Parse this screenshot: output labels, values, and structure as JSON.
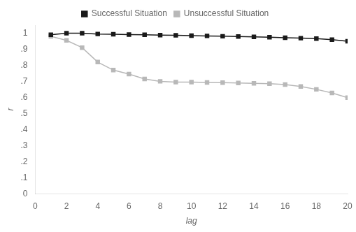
{
  "chart_data": {
    "type": "line",
    "x_label": "lag",
    "y_label": "r",
    "x": [
      1,
      2,
      3,
      4,
      5,
      6,
      7,
      8,
      9,
      10,
      11,
      12,
      13,
      14,
      15,
      16,
      17,
      18,
      19,
      20
    ],
    "series": [
      {
        "name": "Successful Situation",
        "color": "#1a1a1a",
        "marker": "square",
        "values": [
          0.99,
          1.0,
          1.0,
          0.995,
          0.993,
          0.991,
          0.99,
          0.988,
          0.987,
          0.985,
          0.983,
          0.981,
          0.979,
          0.977,
          0.975,
          0.972,
          0.969,
          0.966,
          0.96,
          0.95
        ]
      },
      {
        "name": "Unsuccessful Situation",
        "color": "#b8b8b8",
        "marker": "square",
        "values": [
          0.98,
          0.955,
          0.91,
          0.82,
          0.77,
          0.745,
          0.715,
          0.7,
          0.695,
          0.695,
          0.693,
          0.692,
          0.69,
          0.688,
          0.685,
          0.68,
          0.668,
          0.65,
          0.628,
          0.598
        ]
      }
    ],
    "xlim": [
      0,
      20
    ],
    "xticks": [
      0,
      2,
      4,
      6,
      8,
      10,
      12,
      14,
      16,
      18,
      20
    ],
    "ylim": [
      0,
      1.05
    ],
    "yticks": [
      0,
      {
        "value": 0.1,
        "label": ".1"
      },
      {
        "value": 0.2,
        "label": ".2"
      },
      {
        "value": 0.3,
        "label": ".3"
      },
      {
        "value": 0.4,
        "label": ".4"
      },
      {
        "value": 0.5,
        "label": ".5"
      },
      {
        "value": 0.6,
        "label": ".6"
      },
      {
        "value": 0.7,
        "label": ".7"
      },
      {
        "value": 0.8,
        "label": ".8"
      },
      {
        "value": 0.9,
        "label": ".9"
      },
      1
    ],
    "grid": false,
    "legend": "top"
  }
}
